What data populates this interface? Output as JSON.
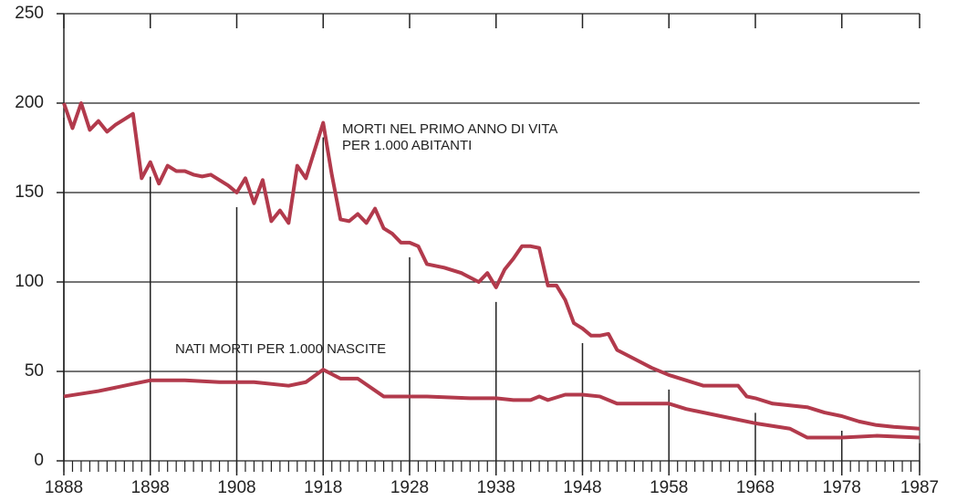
{
  "chart_data": {
    "type": "line",
    "annotations": [
      [
        "MORTI NEL PRIMO ANNO DI VITA",
        "PER 1.000 ABITANTI"
      ],
      [
        "NATI MORTI PER 1.000 NASCITE"
      ]
    ],
    "series": [
      {
        "color": "#b23a4c",
        "x": [
          1888,
          1889,
          1890,
          1891,
          1892,
          1893,
          1894,
          1895,
          1896,
          1897,
          1898,
          1899,
          1900,
          1901,
          1902,
          1903,
          1904,
          1905,
          1906,
          1907,
          1908,
          1909,
          1910,
          1911,
          1912,
          1913,
          1914,
          1915,
          1916,
          1918,
          1919,
          1920,
          1921,
          1922,
          1923,
          1924,
          1925,
          1926,
          1927,
          1928,
          1929,
          1930,
          1932,
          1934,
          1936,
          1937,
          1938,
          1939,
          1940,
          1941,
          1942,
          1943,
          1944,
          1945,
          1946,
          1947,
          1948,
          1949,
          1950,
          1951,
          1952,
          1954,
          1956,
          1958,
          1960,
          1962,
          1964,
          1966,
          1967,
          1968,
          1970,
          1972,
          1974,
          1976,
          1978,
          1980,
          1982,
          1984,
          1987
        ],
        "values": [
          200,
          186,
          200,
          185,
          190,
          184,
          188,
          191,
          194,
          158,
          167,
          155,
          165,
          162,
          162,
          160,
          159,
          160,
          157,
          154,
          150,
          158,
          144,
          157,
          134,
          140,
          133,
          165,
          158,
          189,
          160,
          135,
          134,
          138,
          133,
          141,
          130,
          127,
          122,
          122,
          120,
          110,
          108,
          105,
          100,
          105,
          97,
          107,
          113,
          120,
          120,
          119,
          98,
          98,
          90,
          77,
          74,
          70,
          70,
          71,
          62,
          57,
          52,
          48,
          45,
          42,
          42,
          42,
          36,
          35,
          32,
          31,
          30,
          27,
          25,
          22,
          20,
          19,
          18
        ]
      },
      {
        "color": "#b23a4c",
        "x": [
          1888,
          1892,
          1896,
          1898,
          1902,
          1906,
          1910,
          1914,
          1916,
          1918,
          1920,
          1922,
          1925,
          1930,
          1935,
          1938,
          1940,
          1942,
          1943,
          1944,
          1946,
          1948,
          1950,
          1952,
          1958,
          1960,
          1964,
          1968,
          1972,
          1974,
          1978,
          1982,
          1987
        ],
        "values": [
          36,
          39,
          43,
          45,
          45,
          44,
          44,
          42,
          44,
          51,
          46,
          46,
          36,
          36,
          35,
          35,
          34,
          34,
          36,
          34,
          37,
          37,
          36,
          32,
          32,
          29,
          25,
          21,
          18,
          13,
          13,
          14,
          13
        ]
      }
    ],
    "xlim": [
      1888,
      1987
    ],
    "xticks": [
      1888,
      1898,
      1908,
      1918,
      1928,
      1938,
      1948,
      1958,
      1968,
      1978,
      1987
    ],
    "ylim": [
      0,
      250
    ],
    "yticks": [
      0,
      50,
      100,
      150,
      200,
      250
    ],
    "grid": true
  }
}
